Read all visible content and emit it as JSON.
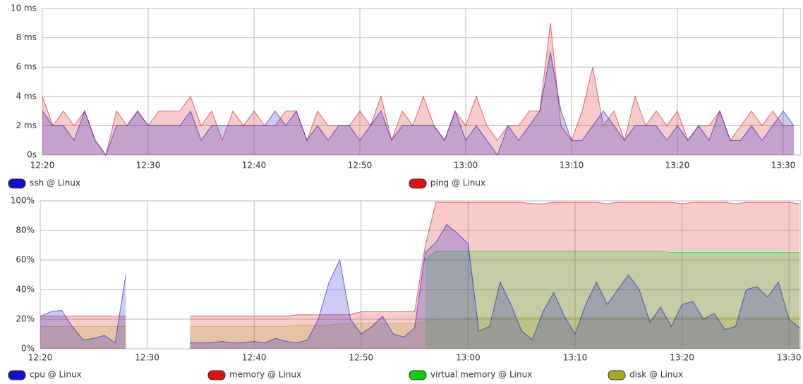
{
  "chart_data": [
    {
      "type": "area",
      "x": [
        "12:20",
        "12:21",
        "12:22",
        "12:23",
        "12:24",
        "12:25",
        "12:26",
        "12:27",
        "12:28",
        "12:29",
        "12:30",
        "12:31",
        "12:32",
        "12:33",
        "12:34",
        "12:35",
        "12:36",
        "12:37",
        "12:38",
        "12:39",
        "12:40",
        "12:41",
        "12:42",
        "12:43",
        "12:44",
        "12:45",
        "12:46",
        "12:47",
        "12:48",
        "12:49",
        "12:50",
        "12:51",
        "12:52",
        "12:53",
        "12:54",
        "12:55",
        "12:56",
        "12:57",
        "12:58",
        "12:59",
        "13:00",
        "13:01",
        "13:02",
        "13:03",
        "13:04",
        "13:05",
        "13:06",
        "13:07",
        "13:08",
        "13:09",
        "13:10",
        "13:11",
        "13:12",
        "13:13",
        "13:14",
        "13:15",
        "13:16",
        "13:17",
        "13:18",
        "13:19",
        "13:20",
        "13:21",
        "13:22",
        "13:23",
        "13:24",
        "13:25",
        "13:26",
        "13:27",
        "13:28",
        "13:29",
        "13:30",
        "13:31"
      ],
      "xticks": [
        "12:20",
        "12:30",
        "12:40",
        "12:50",
        "13:00",
        "13:10",
        "13:20",
        "13:30"
      ],
      "ylim": [
        0,
        10
      ],
      "yticks": [
        {
          "value": 0,
          "label": "0s"
        },
        {
          "value": 2,
          "label": "2 ms"
        },
        {
          "value": 4,
          "label": "4 ms"
        },
        {
          "value": 6,
          "label": "6 ms"
        },
        {
          "value": 8,
          "label": "8 ms"
        },
        {
          "value": 10,
          "label": "10 ms"
        }
      ],
      "grid": true,
      "legend": "bottom",
      "series": [
        {
          "name": "ping @ Linux",
          "color": "#dd1111",
          "values": [
            4,
            2,
            3,
            2,
            3,
            1,
            0,
            3,
            2,
            3,
            2,
            3,
            3,
            3,
            4,
            2,
            3,
            1,
            3,
            2,
            3,
            2,
            2,
            3,
            3,
            1,
            3,
            2,
            2,
            2,
            3,
            2,
            4,
            1,
            3,
            2,
            4,
            2,
            1,
            3,
            2,
            4,
            2,
            1,
            2,
            2,
            3,
            3,
            9,
            2,
            1,
            3,
            6,
            2,
            3,
            1,
            4,
            2,
            3,
            2,
            3,
            1,
            2,
            2,
            3,
            1,
            2,
            3,
            2,
            3,
            2,
            2
          ]
        },
        {
          "name": "ssh @ Linux",
          "color": "#1111cc",
          "values": [
            3,
            2,
            2,
            1,
            3,
            1,
            0,
            2,
            2,
            3,
            2,
            2,
            2,
            2,
            3,
            1,
            2,
            2,
            2,
            2,
            2,
            2,
            3,
            2,
            3,
            1,
            2,
            1,
            2,
            2,
            1,
            2,
            3,
            1,
            2,
            2,
            2,
            2,
            1,
            3,
            1,
            2,
            1,
            0,
            2,
            1,
            2,
            3,
            7,
            3,
            1,
            1,
            2,
            3,
            2,
            1,
            2,
            2,
            2,
            1,
            2,
            1,
            2,
            1,
            3,
            1,
            1,
            2,
            1,
            2,
            3,
            2
          ]
        }
      ],
      "legend_order": [
        "ssh @ Linux",
        "ping @ Linux"
      ]
    },
    {
      "type": "area",
      "x": [
        "12:20",
        "12:21",
        "12:22",
        "12:23",
        "12:24",
        "12:25",
        "12:26",
        "12:27",
        "12:28",
        "12:29",
        "12:30",
        "12:31",
        "12:32",
        "12:33",
        "12:34",
        "12:35",
        "12:36",
        "12:37",
        "12:38",
        "12:39",
        "12:40",
        "12:41",
        "12:42",
        "12:43",
        "12:44",
        "12:45",
        "12:46",
        "12:47",
        "12:48",
        "12:49",
        "12:50",
        "12:51",
        "12:52",
        "12:53",
        "12:54",
        "12:55",
        "12:56",
        "12:57",
        "12:58",
        "12:59",
        "13:00",
        "13:01",
        "13:02",
        "13:03",
        "13:04",
        "13:05",
        "13:06",
        "13:07",
        "13:08",
        "13:09",
        "13:10",
        "13:11",
        "13:12",
        "13:13",
        "13:14",
        "13:15",
        "13:16",
        "13:17",
        "13:18",
        "13:19",
        "13:20",
        "13:21",
        "13:22",
        "13:23",
        "13:24",
        "13:25",
        "13:26",
        "13:27",
        "13:28",
        "13:29",
        "13:30",
        "13:31"
      ],
      "xticks": [
        "12:20",
        "12:30",
        "12:40",
        "12:50",
        "13:00",
        "13:10",
        "13:20",
        "13:30"
      ],
      "ylim": [
        0,
        100
      ],
      "yticks": [
        {
          "value": 0,
          "label": "0%"
        },
        {
          "value": 20,
          "label": "20%"
        },
        {
          "value": 40,
          "label": "40%"
        },
        {
          "value": 60,
          "label": "60%"
        },
        {
          "value": 80,
          "label": "80%"
        },
        {
          "value": 100,
          "label": "100%"
        }
      ],
      "grid": true,
      "legend": "bottom",
      "series": [
        {
          "name": "memory @ Linux",
          "color": "#dd1111",
          "values": [
            22,
            22,
            22,
            22,
            22,
            22,
            22,
            22,
            22,
            null,
            null,
            null,
            null,
            null,
            22,
            22,
            22,
            22,
            22,
            22,
            22,
            22,
            22,
            22,
            23,
            23,
            23,
            23,
            23,
            23,
            25,
            25,
            25,
            25,
            25,
            25,
            70,
            99,
            99,
            99,
            99,
            99,
            99,
            99,
            99,
            99,
            98,
            98,
            99,
            99,
            99,
            99,
            99,
            98,
            99,
            99,
            99,
            99,
            99,
            99,
            98,
            99,
            99,
            99,
            99,
            98,
            99,
            99,
            99,
            99,
            99,
            98
          ]
        },
        {
          "name": "virtual memory @ Linux",
          "color": "#11cc11",
          "values": [
            null,
            null,
            null,
            null,
            null,
            null,
            null,
            null,
            null,
            null,
            null,
            null,
            null,
            null,
            null,
            null,
            null,
            null,
            null,
            null,
            null,
            null,
            null,
            null,
            null,
            null,
            null,
            null,
            null,
            null,
            null,
            null,
            null,
            null,
            null,
            null,
            60,
            66,
            66,
            66,
            66,
            66,
            66,
            66,
            66,
            66,
            66,
            66,
            66,
            66,
            66,
            66,
            66,
            66,
            66,
            66,
            66,
            66,
            66,
            65,
            65,
            65,
            65,
            65,
            65,
            65,
            65,
            65,
            65,
            65,
            65,
            65
          ]
        },
        {
          "name": "disk @ Linux",
          "color": "#aaaa22",
          "values": [
            15,
            15,
            15,
            15,
            15,
            15,
            15,
            15,
            15,
            null,
            null,
            null,
            null,
            null,
            15,
            15,
            15,
            15,
            15,
            15,
            15,
            15,
            15,
            15,
            16,
            16,
            16,
            16,
            17,
            17,
            17,
            17,
            17,
            17,
            17,
            17,
            19,
            20,
            20,
            20,
            21,
            21,
            21,
            21,
            21,
            21,
            21,
            21,
            21,
            21,
            21,
            21,
            21,
            21,
            21,
            21,
            21,
            21,
            21,
            21,
            21,
            21,
            21,
            21,
            21,
            21,
            21,
            21,
            21,
            21,
            21,
            21
          ]
        },
        {
          "name": "cpu @ Linux",
          "color": "#1111cc",
          "values": [
            22,
            25,
            26,
            15,
            6,
            7,
            9,
            4,
            50,
            null,
            null,
            null,
            null,
            null,
            4,
            4,
            4,
            5,
            4,
            4,
            5,
            4,
            7,
            5,
            4,
            6,
            20,
            45,
            60,
            20,
            10,
            15,
            22,
            10,
            8,
            14,
            65,
            72,
            84,
            78,
            71,
            12,
            15,
            45,
            30,
            12,
            6,
            25,
            38,
            22,
            10,
            30,
            45,
            30,
            40,
            50,
            40,
            18,
            28,
            15,
            30,
            32,
            20,
            24,
            13,
            15,
            40,
            42,
            35,
            45,
            20,
            14
          ]
        }
      ],
      "legend_order": [
        "cpu @ Linux",
        "memory @ Linux",
        "virtual memory @ Linux",
        "disk @ Linux"
      ]
    }
  ]
}
